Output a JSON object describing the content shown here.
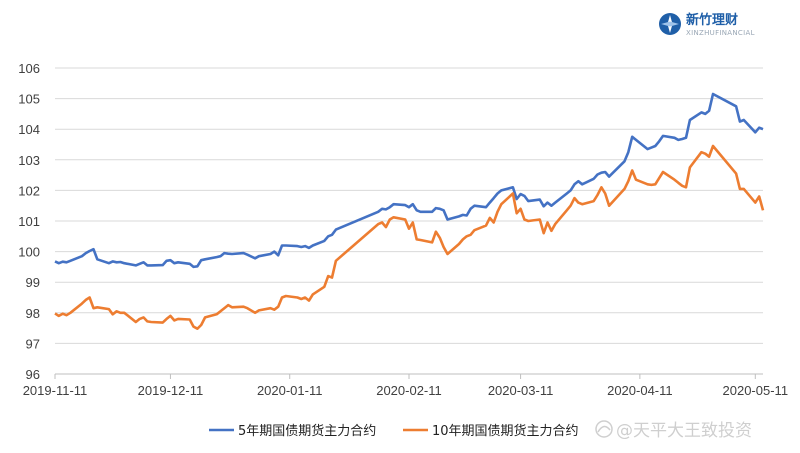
{
  "logo": {
    "brand_cn": "新竹理财",
    "brand_en": "XINZHUFINANCIAL",
    "icon": "compass-logo-icon"
  },
  "watermark": {
    "icon": "snowball-icon",
    "text": "@天平大王致投资"
  },
  "chart_data": {
    "type": "line",
    "title": "",
    "xlabel": "",
    "ylabel": "",
    "ylim": [
      96,
      106
    ],
    "yticks": [
      96,
      97,
      98,
      99,
      100,
      101,
      102,
      103,
      104,
      105,
      106
    ],
    "x_range": [
      "2019-11-11",
      "2020-05-13"
    ],
    "xticks": [
      "2019-11-11",
      "2019-12-11",
      "2020-01-11",
      "2020-02-11",
      "2020-03-11",
      "2020-04-11",
      "2020-05-11"
    ],
    "grid": "horizontal",
    "legend_position": "bottom",
    "series": [
      {
        "name": "5年期国债期货主力合约",
        "color": "#4472c4",
        "points": [
          [
            "2019-11-11",
            99.68
          ],
          [
            "2019-11-12",
            99.62
          ],
          [
            "2019-11-13",
            99.67
          ],
          [
            "2019-11-14",
            99.65
          ],
          [
            "2019-11-15",
            99.7
          ],
          [
            "2019-11-18",
            99.85
          ],
          [
            "2019-11-19",
            99.95
          ],
          [
            "2019-11-20",
            100.02
          ],
          [
            "2019-11-21",
            100.08
          ],
          [
            "2019-11-22",
            99.75
          ],
          [
            "2019-11-25",
            99.62
          ],
          [
            "2019-11-26",
            99.68
          ],
          [
            "2019-11-27",
            99.65
          ],
          [
            "2019-11-28",
            99.66
          ],
          [
            "2019-11-29",
            99.62
          ],
          [
            "2019-12-02",
            99.55
          ],
          [
            "2019-12-03",
            99.6
          ],
          [
            "2019-12-04",
            99.65
          ],
          [
            "2019-12-05",
            99.55
          ],
          [
            "2019-12-06",
            99.55
          ],
          [
            "2019-12-09",
            99.56
          ],
          [
            "2019-12-10",
            99.7
          ],
          [
            "2019-12-11",
            99.72
          ],
          [
            "2019-12-12",
            99.62
          ],
          [
            "2019-12-13",
            99.65
          ],
          [
            "2019-12-16",
            99.6
          ],
          [
            "2019-12-17",
            99.5
          ],
          [
            "2019-12-18",
            99.52
          ],
          [
            "2019-12-19",
            99.72
          ],
          [
            "2019-12-20",
            99.75
          ],
          [
            "2019-12-23",
            99.82
          ],
          [
            "2019-12-24",
            99.85
          ],
          [
            "2019-12-25",
            99.95
          ],
          [
            "2019-12-26",
            99.93
          ],
          [
            "2019-12-27",
            99.92
          ],
          [
            "2019-12-30",
            99.95
          ],
          [
            "2019-12-31",
            99.9
          ],
          [
            "2020-01-02",
            99.78
          ],
          [
            "2020-01-03",
            99.85
          ],
          [
            "2020-01-06",
            99.92
          ],
          [
            "2020-01-07",
            100.0
          ],
          [
            "2020-01-08",
            99.88
          ],
          [
            "2020-01-09",
            100.2
          ],
          [
            "2020-01-10",
            100.2
          ],
          [
            "2020-01-13",
            100.18
          ],
          [
            "2020-01-14",
            100.15
          ],
          [
            "2020-01-15",
            100.18
          ],
          [
            "2020-01-16",
            100.12
          ],
          [
            "2020-01-17",
            100.2
          ],
          [
            "2020-01-20",
            100.35
          ],
          [
            "2020-01-21",
            100.5
          ],
          [
            "2020-01-22",
            100.55
          ],
          [
            "2020-01-23",
            100.72
          ],
          [
            "2020-02-03",
            101.3
          ],
          [
            "2020-02-04",
            101.4
          ],
          [
            "2020-02-05",
            101.38
          ],
          [
            "2020-02-06",
            101.45
          ],
          [
            "2020-02-07",
            101.55
          ],
          [
            "2020-02-10",
            101.52
          ],
          [
            "2020-02-11",
            101.45
          ],
          [
            "2020-02-12",
            101.55
          ],
          [
            "2020-02-13",
            101.35
          ],
          [
            "2020-02-14",
            101.3
          ],
          [
            "2020-02-17",
            101.3
          ],
          [
            "2020-02-18",
            101.42
          ],
          [
            "2020-02-19",
            101.4
          ],
          [
            "2020-02-20",
            101.35
          ],
          [
            "2020-02-21",
            101.05
          ],
          [
            "2020-02-24",
            101.15
          ],
          [
            "2020-02-25",
            101.2
          ],
          [
            "2020-02-26",
            101.18
          ],
          [
            "2020-02-27",
            101.4
          ],
          [
            "2020-02-28",
            101.5
          ],
          [
            "2020-03-02",
            101.45
          ],
          [
            "2020-03-03",
            101.6
          ],
          [
            "2020-03-04",
            101.75
          ],
          [
            "2020-03-05",
            101.9
          ],
          [
            "2020-03-06",
            102.0
          ],
          [
            "2020-03-09",
            102.1
          ],
          [
            "2020-03-10",
            101.72
          ],
          [
            "2020-03-11",
            101.88
          ],
          [
            "2020-03-12",
            101.82
          ],
          [
            "2020-03-13",
            101.65
          ],
          [
            "2020-03-16",
            101.7
          ],
          [
            "2020-03-17",
            101.48
          ],
          [
            "2020-03-18",
            101.6
          ],
          [
            "2020-03-19",
            101.5
          ],
          [
            "2020-03-20",
            101.6
          ],
          [
            "2020-03-23",
            101.9
          ],
          [
            "2020-03-24",
            102.0
          ],
          [
            "2020-03-25",
            102.2
          ],
          [
            "2020-03-26",
            102.3
          ],
          [
            "2020-03-27",
            102.2
          ],
          [
            "2020-03-30",
            102.38
          ],
          [
            "2020-03-31",
            102.52
          ],
          [
            "2020-04-01",
            102.58
          ],
          [
            "2020-04-02",
            102.6
          ],
          [
            "2020-04-03",
            102.45
          ],
          [
            "2020-04-07",
            102.95
          ],
          [
            "2020-04-08",
            103.25
          ],
          [
            "2020-04-09",
            103.75
          ],
          [
            "2020-04-10",
            103.65
          ],
          [
            "2020-04-13",
            103.35
          ],
          [
            "2020-04-14",
            103.4
          ],
          [
            "2020-04-15",
            103.45
          ],
          [
            "2020-04-16",
            103.6
          ],
          [
            "2020-04-17",
            103.78
          ],
          [
            "2020-04-20",
            103.72
          ],
          [
            "2020-04-21",
            103.65
          ],
          [
            "2020-04-22",
            103.68
          ],
          [
            "2020-04-23",
            103.72
          ],
          [
            "2020-04-24",
            104.3
          ],
          [
            "2020-04-27",
            104.55
          ],
          [
            "2020-04-28",
            104.5
          ],
          [
            "2020-04-29",
            104.6
          ],
          [
            "2020-04-30",
            105.15
          ],
          [
            "2020-05-06",
            104.75
          ],
          [
            "2020-05-07",
            104.25
          ],
          [
            "2020-05-08",
            104.3
          ],
          [
            "2020-05-11",
            103.9
          ],
          [
            "2020-05-12",
            104.05
          ],
          [
            "2020-05-13",
            104.0
          ]
        ]
      },
      {
        "name": "10年期国债期货主力合约",
        "color": "#ed7d31",
        "points": [
          [
            "2019-11-11",
            97.98
          ],
          [
            "2019-11-12",
            97.9
          ],
          [
            "2019-11-13",
            97.97
          ],
          [
            "2019-11-14",
            97.92
          ],
          [
            "2019-11-15",
            98.0
          ],
          [
            "2019-11-18",
            98.3
          ],
          [
            "2019-11-19",
            98.42
          ],
          [
            "2019-11-20",
            98.5
          ],
          [
            "2019-11-21",
            98.15
          ],
          [
            "2019-11-22",
            98.18
          ],
          [
            "2019-11-25",
            98.12
          ],
          [
            "2019-11-26",
            97.95
          ],
          [
            "2019-11-27",
            98.05
          ],
          [
            "2019-11-28",
            98.0
          ],
          [
            "2019-11-29",
            98.0
          ],
          [
            "2019-12-02",
            97.7
          ],
          [
            "2019-12-03",
            97.8
          ],
          [
            "2019-12-04",
            97.85
          ],
          [
            "2019-12-05",
            97.72
          ],
          [
            "2019-12-06",
            97.7
          ],
          [
            "2019-12-09",
            97.68
          ],
          [
            "2019-12-10",
            97.8
          ],
          [
            "2019-12-11",
            97.9
          ],
          [
            "2019-12-12",
            97.75
          ],
          [
            "2019-12-13",
            97.8
          ],
          [
            "2019-12-16",
            97.78
          ],
          [
            "2019-12-17",
            97.55
          ],
          [
            "2019-12-18",
            97.48
          ],
          [
            "2019-12-19",
            97.6
          ],
          [
            "2019-12-20",
            97.85
          ],
          [
            "2019-12-23",
            97.95
          ],
          [
            "2019-12-24",
            98.05
          ],
          [
            "2019-12-25",
            98.15
          ],
          [
            "2019-12-26",
            98.25
          ],
          [
            "2019-12-27",
            98.18
          ],
          [
            "2019-12-30",
            98.2
          ],
          [
            "2019-12-31",
            98.15
          ],
          [
            "2020-01-02",
            98.0
          ],
          [
            "2020-01-03",
            98.08
          ],
          [
            "2020-01-06",
            98.15
          ],
          [
            "2020-01-07",
            98.1
          ],
          [
            "2020-01-08",
            98.2
          ],
          [
            "2020-01-09",
            98.5
          ],
          [
            "2020-01-10",
            98.55
          ],
          [
            "2020-01-13",
            98.5
          ],
          [
            "2020-01-14",
            98.45
          ],
          [
            "2020-01-15",
            98.5
          ],
          [
            "2020-01-16",
            98.4
          ],
          [
            "2020-01-17",
            98.6
          ],
          [
            "2020-01-20",
            98.85
          ],
          [
            "2020-01-21",
            99.2
          ],
          [
            "2020-01-22",
            99.15
          ],
          [
            "2020-01-23",
            99.7
          ],
          [
            "2020-02-03",
            100.9
          ],
          [
            "2020-02-04",
            100.95
          ],
          [
            "2020-02-05",
            100.8
          ],
          [
            "2020-02-06",
            101.05
          ],
          [
            "2020-02-07",
            101.12
          ],
          [
            "2020-02-10",
            101.05
          ],
          [
            "2020-02-11",
            100.75
          ],
          [
            "2020-02-12",
            100.95
          ],
          [
            "2020-02-13",
            100.4
          ],
          [
            "2020-02-14",
            100.38
          ],
          [
            "2020-02-17",
            100.3
          ],
          [
            "2020-02-18",
            100.65
          ],
          [
            "2020-02-19",
            100.45
          ],
          [
            "2020-02-20",
            100.15
          ],
          [
            "2020-02-21",
            99.92
          ],
          [
            "2020-02-24",
            100.25
          ],
          [
            "2020-02-25",
            100.4
          ],
          [
            "2020-02-26",
            100.5
          ],
          [
            "2020-02-27",
            100.55
          ],
          [
            "2020-02-28",
            100.7
          ],
          [
            "2020-03-02",
            100.85
          ],
          [
            "2020-03-03",
            101.1
          ],
          [
            "2020-03-04",
            100.95
          ],
          [
            "2020-03-05",
            101.3
          ],
          [
            "2020-03-06",
            101.55
          ],
          [
            "2020-03-09",
            101.9
          ],
          [
            "2020-03-10",
            101.25
          ],
          [
            "2020-03-11",
            101.4
          ],
          [
            "2020-03-12",
            101.05
          ],
          [
            "2020-03-13",
            101.0
          ],
          [
            "2020-03-16",
            101.05
          ],
          [
            "2020-03-17",
            100.6
          ],
          [
            "2020-03-18",
            100.95
          ],
          [
            "2020-03-19",
            100.68
          ],
          [
            "2020-03-20",
            100.9
          ],
          [
            "2020-03-23",
            101.35
          ],
          [
            "2020-03-24",
            101.5
          ],
          [
            "2020-03-25",
            101.75
          ],
          [
            "2020-03-26",
            101.6
          ],
          [
            "2020-03-27",
            101.55
          ],
          [
            "2020-03-30",
            101.65
          ],
          [
            "2020-03-31",
            101.85
          ],
          [
            "2020-04-01",
            102.1
          ],
          [
            "2020-04-02",
            101.9
          ],
          [
            "2020-04-03",
            101.5
          ],
          [
            "2020-04-07",
            102.05
          ],
          [
            "2020-04-08",
            102.3
          ],
          [
            "2020-04-09",
            102.65
          ],
          [
            "2020-04-10",
            102.35
          ],
          [
            "2020-04-13",
            102.2
          ],
          [
            "2020-04-14",
            102.18
          ],
          [
            "2020-04-15",
            102.2
          ],
          [
            "2020-04-16",
            102.4
          ],
          [
            "2020-04-17",
            102.6
          ],
          [
            "2020-04-20",
            102.35
          ],
          [
            "2020-04-21",
            102.25
          ],
          [
            "2020-04-22",
            102.15
          ],
          [
            "2020-04-23",
            102.1
          ],
          [
            "2020-04-24",
            102.75
          ],
          [
            "2020-04-27",
            103.25
          ],
          [
            "2020-04-28",
            103.2
          ],
          [
            "2020-04-29",
            103.1
          ],
          [
            "2020-04-30",
            103.45
          ],
          [
            "2020-05-06",
            102.55
          ],
          [
            "2020-05-07",
            102.05
          ],
          [
            "2020-05-08",
            102.05
          ],
          [
            "2020-05-11",
            101.6
          ],
          [
            "2020-05-12",
            101.8
          ],
          [
            "2020-05-13",
            101.35
          ]
        ]
      }
    ]
  }
}
